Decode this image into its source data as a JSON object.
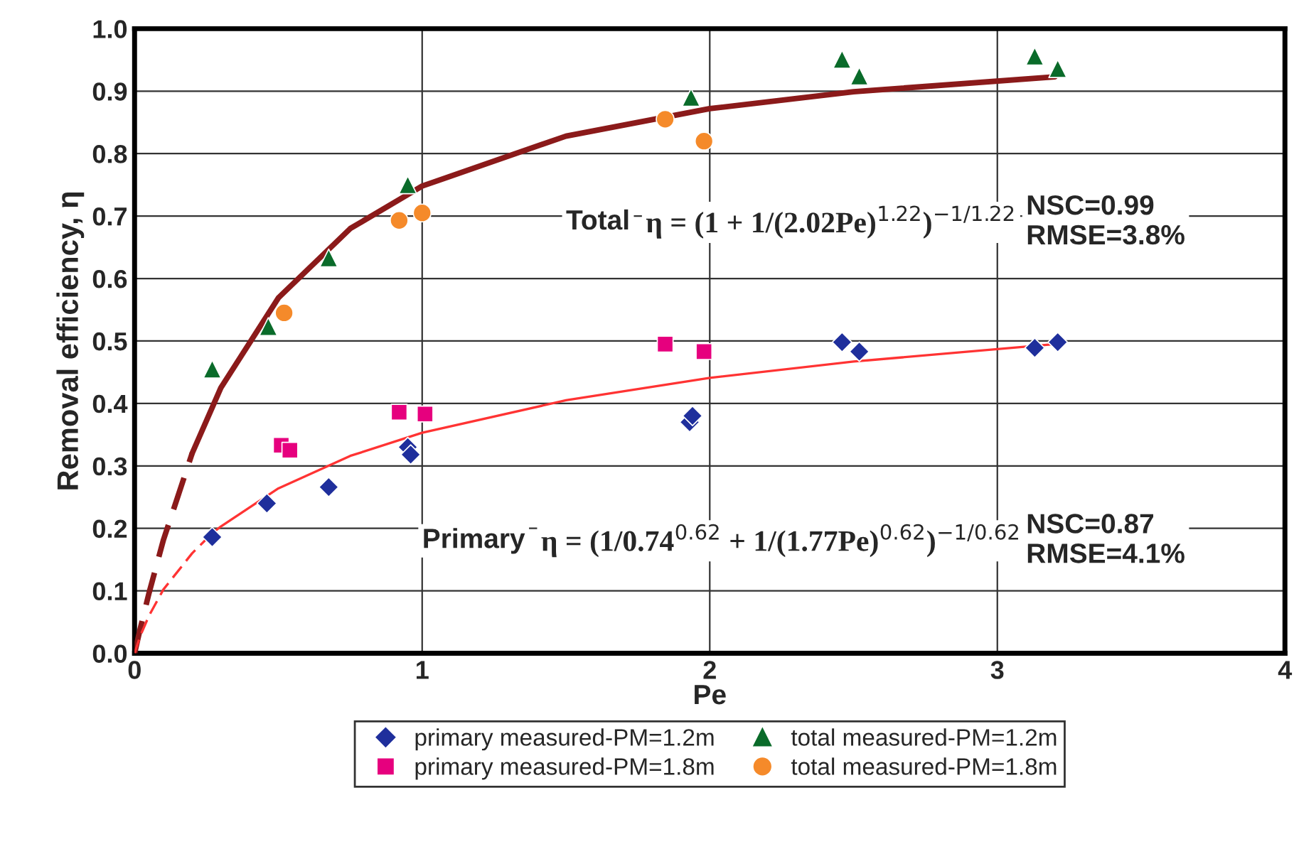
{
  "chart_data": {
    "type": "scatter",
    "xlabel": "Pe",
    "ylabel": "Removal efficiency, η",
    "xlim": [
      0,
      4
    ],
    "ylim": [
      0,
      1
    ],
    "xticks": [
      0,
      1,
      2,
      3,
      4
    ],
    "yticks": [
      {
        "value": 0,
        "label": "0.0"
      },
      0.1,
      0.2,
      0.3,
      0.4,
      0.5,
      0.6,
      0.7,
      0.8,
      0.9,
      {
        "value": 1,
        "label": "1.0"
      }
    ],
    "grid": true,
    "legend": "bottom",
    "series": [
      {
        "name": "primary measured-PM=1.2m",
        "marker": "diamond",
        "color": "#1f2f9c",
        "x": [
          0.27,
          0.46,
          0.675,
          0.95,
          0.96,
          1.93,
          1.94,
          2.46,
          2.52,
          3.13,
          3.21
        ],
        "values": [
          0.186,
          0.24,
          0.266,
          0.33,
          0.318,
          0.37,
          0.38,
          0.498,
          0.483,
          0.489,
          0.498
        ]
      },
      {
        "name": "primary measured-PM=1.8m",
        "marker": "square",
        "color": "#e6007e",
        "x": [
          0.51,
          0.54,
          0.92,
          1.01,
          1.845,
          1.98
        ],
        "values": [
          0.333,
          0.325,
          0.386,
          0.383,
          0.495,
          0.483
        ]
      },
      {
        "name": "total measured-PM=1.2m",
        "marker": "triangle",
        "color": "#0a6b2a",
        "x": [
          0.27,
          0.465,
          0.675,
          0.95,
          1.935,
          2.46,
          2.52,
          3.13,
          3.21
        ],
        "values": [
          0.455,
          0.523,
          0.633,
          0.75,
          0.89,
          0.951,
          0.924,
          0.956,
          0.936
        ]
      },
      {
        "name": "total measured-PM=1.8m",
        "marker": "circle",
        "color": "#f58a2a",
        "x": [
          0.52,
          0.92,
          1.0,
          1.845,
          1.98
        ],
        "values": [
          0.545,
          0.693,
          0.705,
          0.855,
          0.82
        ]
      },
      {
        "type": "line",
        "line_style": "dashed",
        "color": "#8b1a1a",
        "x": [
          0,
          0.02,
          0.05,
          0.1,
          0.2
        ],
        "values": [
          0,
          0.04,
          0.096,
          0.181,
          0.32
        ]
      },
      {
        "type": "line",
        "line_style": "solid",
        "color": "#8b1a1a",
        "x": [
          0.2,
          0.3,
          0.5,
          0.75,
          1,
          1.5,
          2,
          2.5,
          3.2
        ],
        "values": [
          0.32,
          0.425,
          0.569,
          0.68,
          0.748,
          0.828,
          0.872,
          0.899,
          0.923
        ]
      },
      {
        "type": "line",
        "line_style": "dashed",
        "color": "#ff3333",
        "x": [
          0,
          0.02,
          0.05,
          0.1,
          0.2,
          0.27
        ],
        "values": [
          0,
          0.028,
          0.06,
          0.102,
          0.16,
          0.192
        ]
      },
      {
        "type": "line",
        "line_style": "solid",
        "color": "#ff3333",
        "x": [
          0.27,
          0.3,
          0.5,
          0.75,
          1,
          1.5,
          2,
          2.5,
          3.2
        ],
        "values": [
          0.192,
          0.203,
          0.264,
          0.316,
          0.353,
          0.405,
          0.441,
          0.467,
          0.495
        ]
      }
    ],
    "annotations": [
      "Total",
      "η = (1 + 1/(2.02Pe)$^{1.22}$)$^{−1/1.22}$",
      "NSC=0.99\nRMSE=3.8%",
      "Primary",
      "η = (1/0.74$^{0.62}$ + 1/(1.77Pe)$^{0.62}$)$^{−1/0.62}$",
      "NSC=0.87\nRMSE=4.1%"
    ]
  }
}
